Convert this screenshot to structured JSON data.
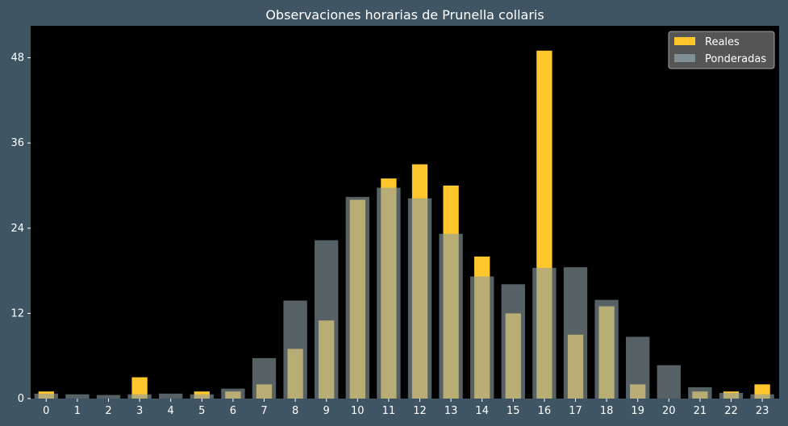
{
  "chart_data": {
    "type": "bar",
    "title": "Observaciones horarias de Prunella collaris",
    "xlabel": "",
    "ylabel": "",
    "categories": [
      "0",
      "1",
      "2",
      "3",
      "4",
      "5",
      "6",
      "7",
      "8",
      "9",
      "10",
      "11",
      "12",
      "13",
      "14",
      "15",
      "16",
      "17",
      "18",
      "19",
      "20",
      "21",
      "22",
      "23"
    ],
    "series": [
      {
        "name": "Reales",
        "color": "#ffc72c",
        "values": [
          1,
          0,
          0,
          3,
          0,
          1,
          1,
          2,
          7,
          11,
          28,
          31,
          33,
          30,
          20,
          12,
          49,
          9,
          13,
          2,
          0,
          1,
          1,
          2
        ]
      },
      {
        "name": "Ponderadas",
        "color": "#8a9da3",
        "values": [
          0.7,
          0.6,
          0.5,
          0.6,
          0.7,
          0.6,
          1.4,
          5.7,
          13.8,
          22.3,
          28.4,
          29.7,
          28.2,
          23.2,
          17.2,
          16.1,
          18.4,
          18.5,
          13.9,
          8.7,
          4.7,
          1.6,
          0.8,
          0.6
        ]
      }
    ],
    "ylim": [
      0,
      52.5
    ],
    "yticks": [
      0,
      12,
      24,
      36,
      48
    ],
    "grid": false,
    "legend": "top-right"
  }
}
